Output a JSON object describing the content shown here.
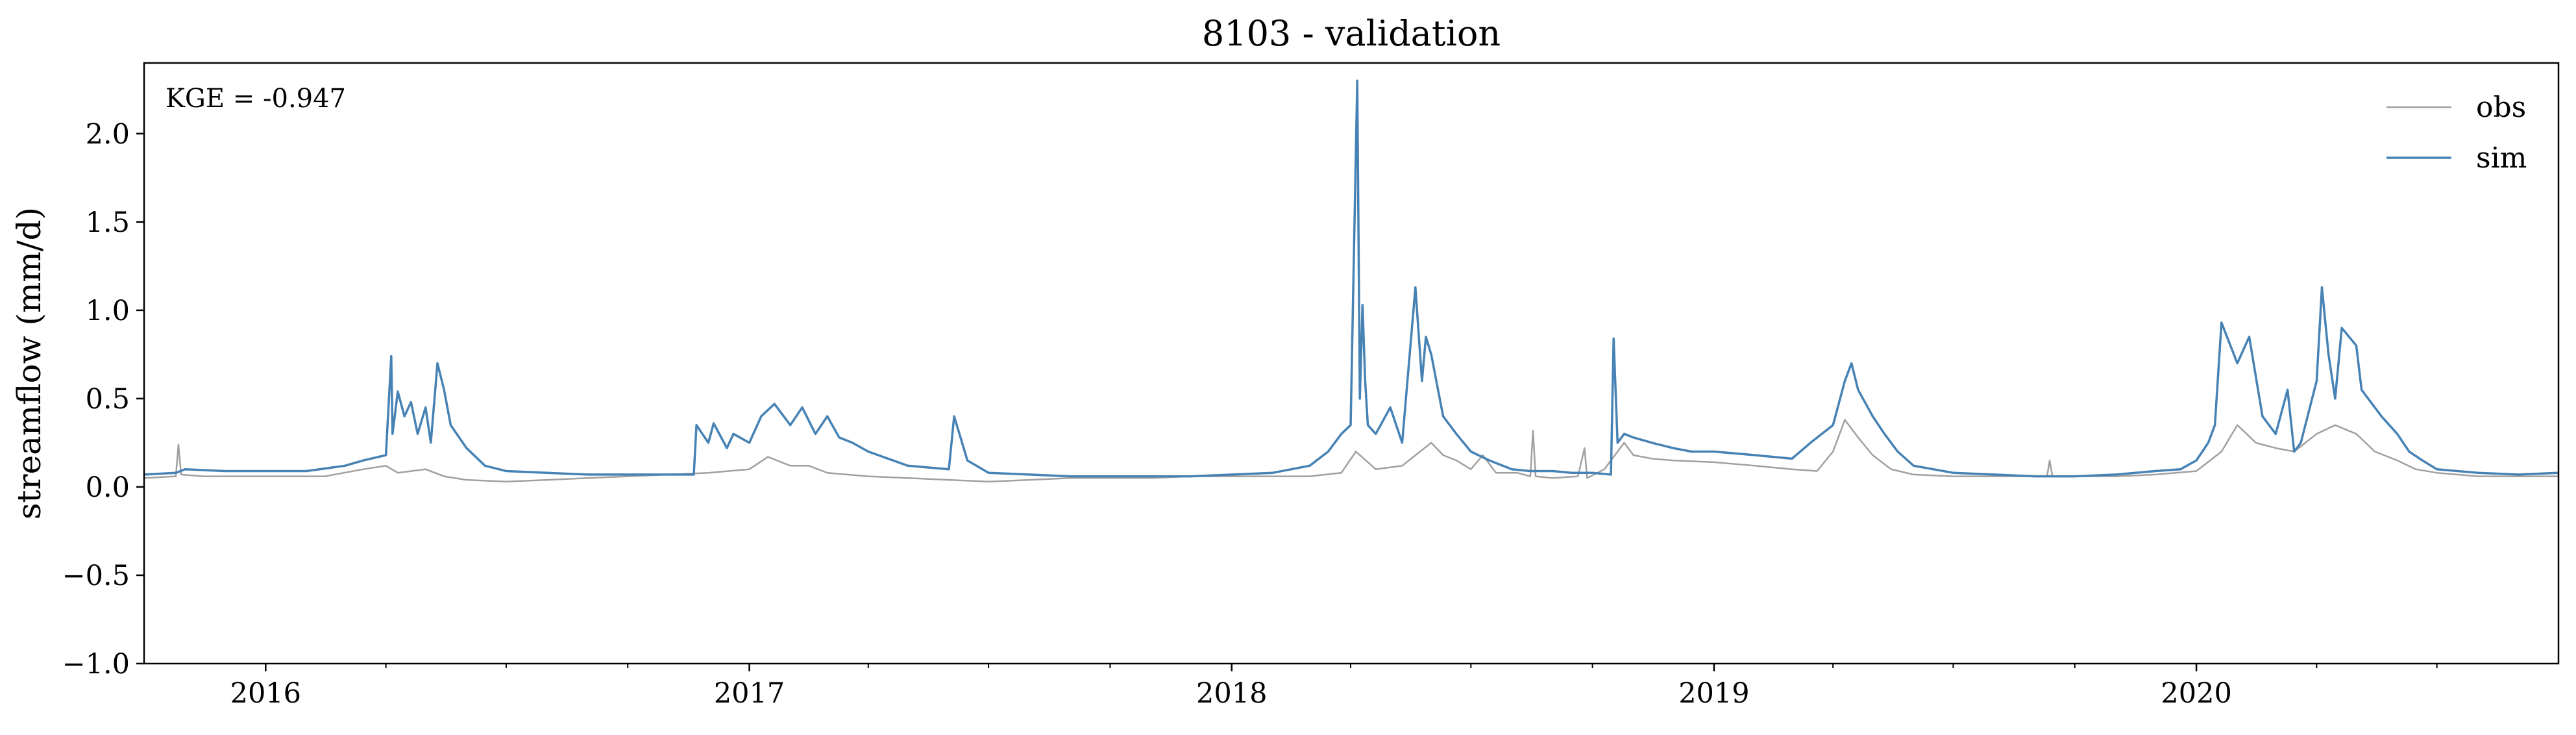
{
  "chart_data": {
    "type": "line",
    "title": "8103 - validation",
    "xlabel": "",
    "ylabel": "streamflow (mm/d)",
    "annotation": "KGE = -0.947",
    "xlim": [
      "2015-10-01",
      "2020-10-01"
    ],
    "ylim": [
      -1.0,
      2.4
    ],
    "grid": false,
    "legend_position": "top-right",
    "x_ticks": [
      "2016",
      "2017",
      "2018",
      "2019",
      "2020"
    ],
    "y_ticks": [
      "−1.0",
      "−0.5",
      "0.0",
      "0.5",
      "1.0",
      "1.5",
      "2.0"
    ],
    "series": [
      {
        "name": "obs",
        "color": "#a0a0a0",
        "x": [
          "2015-10-01",
          "2015-10-25",
          "2015-10-27",
          "2015-10-29",
          "2015-11-15",
          "2016-01-01",
          "2016-02-15",
          "2016-03-15",
          "2016-04-01",
          "2016-04-10",
          "2016-05-01",
          "2016-05-15",
          "2016-06-01",
          "2016-07-01",
          "2016-08-01",
          "2016-09-01",
          "2016-10-01",
          "2016-11-01",
          "2016-12-01",
          "2017-01-01",
          "2017-01-15",
          "2017-02-01",
          "2017-02-15",
          "2017-03-01",
          "2017-04-01",
          "2017-05-01",
          "2017-06-01",
          "2017-07-01",
          "2017-08-01",
          "2017-09-01",
          "2017-10-01",
          "2017-11-01",
          "2017-12-01",
          "2018-01-01",
          "2018-02-01",
          "2018-03-01",
          "2018-03-25",
          "2018-04-05",
          "2018-04-20",
          "2018-05-10",
          "2018-06-01",
          "2018-06-10",
          "2018-06-20",
          "2018-07-01",
          "2018-07-10",
          "2018-07-20",
          "2018-08-05",
          "2018-08-15",
          "2018-08-17",
          "2018-08-19",
          "2018-09-01",
          "2018-09-20",
          "2018-09-25",
          "2018-09-27",
          "2018-10-10",
          "2018-10-25",
          "2018-11-01",
          "2018-11-15",
          "2018-12-01",
          "2019-01-01",
          "2019-02-01",
          "2019-03-01",
          "2019-03-20",
          "2019-04-01",
          "2019-04-10",
          "2019-04-20",
          "2019-05-01",
          "2019-05-15",
          "2019-06-01",
          "2019-07-01",
          "2019-08-01",
          "2019-09-10",
          "2019-09-12",
          "2019-09-14",
          "2019-10-01",
          "2019-11-01",
          "2019-12-01",
          "2020-01-01",
          "2020-01-20",
          "2020-02-01",
          "2020-02-15",
          "2020-03-01",
          "2020-03-15",
          "2020-04-01",
          "2020-04-15",
          "2020-05-01",
          "2020-05-15",
          "2020-06-01",
          "2020-06-15",
          "2020-07-01",
          "2020-08-01",
          "2020-09-01",
          "2020-10-01"
        ],
        "values": [
          0.05,
          0.06,
          0.24,
          0.07,
          0.06,
          0.06,
          0.06,
          0.1,
          0.12,
          0.08,
          0.1,
          0.06,
          0.04,
          0.03,
          0.04,
          0.05,
          0.06,
          0.07,
          0.08,
          0.1,
          0.17,
          0.12,
          0.12,
          0.08,
          0.06,
          0.05,
          0.04,
          0.03,
          0.04,
          0.05,
          0.05,
          0.05,
          0.06,
          0.06,
          0.06,
          0.06,
          0.08,
          0.2,
          0.1,
          0.12,
          0.25,
          0.18,
          0.15,
          0.1,
          0.18,
          0.08,
          0.08,
          0.06,
          0.32,
          0.06,
          0.05,
          0.06,
          0.22,
          0.05,
          0.1,
          0.25,
          0.18,
          0.16,
          0.15,
          0.14,
          0.12,
          0.1,
          0.09,
          0.2,
          0.38,
          0.28,
          0.18,
          0.1,
          0.07,
          0.06,
          0.06,
          0.06,
          0.15,
          0.06,
          0.06,
          0.06,
          0.07,
          0.09,
          0.2,
          0.35,
          0.25,
          0.22,
          0.2,
          0.3,
          0.35,
          0.3,
          0.2,
          0.15,
          0.1,
          0.08,
          0.06,
          0.06,
          0.06
        ]
      },
      {
        "name": "sim",
        "color": "#4682b4",
        "x": [
          "2015-10-01",
          "2015-10-25",
          "2015-11-01",
          "2015-12-01",
          "2016-01-01",
          "2016-02-01",
          "2016-03-01",
          "2016-03-15",
          "2016-04-01",
          "2016-04-05",
          "2016-04-06",
          "2016-04-10",
          "2016-04-15",
          "2016-04-20",
          "2016-04-25",
          "2016-05-01",
          "2016-05-05",
          "2016-05-10",
          "2016-05-15",
          "2016-05-20",
          "2016-06-01",
          "2016-06-15",
          "2016-07-01",
          "2016-08-01",
          "2016-09-01",
          "2016-10-01",
          "2016-11-01",
          "2016-11-20",
          "2016-11-22",
          "2016-12-01",
          "2016-12-05",
          "2016-12-15",
          "2016-12-20",
          "2017-01-01",
          "2017-01-10",
          "2017-01-20",
          "2017-02-01",
          "2017-02-10",
          "2017-02-20",
          "2017-03-01",
          "2017-03-10",
          "2017-03-20",
          "2017-04-01",
          "2017-05-01",
          "2017-06-01",
          "2017-06-05",
          "2017-06-15",
          "2017-07-01",
          "2017-08-01",
          "2017-09-01",
          "2017-10-01",
          "2017-11-01",
          "2017-12-01",
          "2018-01-01",
          "2018-02-01",
          "2018-03-01",
          "2018-03-15",
          "2018-03-25",
          "2018-04-01",
          "2018-04-06",
          "2018-04-08",
          "2018-04-10",
          "2018-04-12",
          "2018-04-14",
          "2018-04-20",
          "2018-05-01",
          "2018-05-10",
          "2018-05-20",
          "2018-05-25",
          "2018-05-28",
          "2018-06-01",
          "2018-06-10",
          "2018-06-20",
          "2018-07-01",
          "2018-07-15",
          "2018-08-01",
          "2018-08-15",
          "2018-09-01",
          "2018-09-15",
          "2018-10-01",
          "2018-10-15",
          "2018-10-17",
          "2018-10-20",
          "2018-10-25",
          "2018-11-01",
          "2018-11-15",
          "2018-12-01",
          "2018-12-15",
          "2019-01-01",
          "2019-02-01",
          "2019-03-01",
          "2019-03-15",
          "2019-04-01",
          "2019-04-10",
          "2019-04-15",
          "2019-04-20",
          "2019-05-01",
          "2019-05-10",
          "2019-05-20",
          "2019-06-01",
          "2019-07-01",
          "2019-08-01",
          "2019-09-01",
          "2019-10-01",
          "2019-11-01",
          "2019-12-01",
          "2019-12-20",
          "2020-01-01",
          "2020-01-10",
          "2020-01-15",
          "2020-01-20",
          "2020-02-01",
          "2020-02-10",
          "2020-02-20",
          "2020-03-01",
          "2020-03-10",
          "2020-03-15",
          "2020-03-20",
          "2020-04-01",
          "2020-04-05",
          "2020-04-10",
          "2020-04-15",
          "2020-04-20",
          "2020-05-01",
          "2020-05-05",
          "2020-05-10",
          "2020-05-20",
          "2020-06-01",
          "2020-06-10",
          "2020-06-20",
          "2020-07-01",
          "2020-08-01",
          "2020-09-01",
          "2020-10-01"
        ],
        "values": [
          0.07,
          0.08,
          0.1,
          0.09,
          0.09,
          0.09,
          0.12,
          0.15,
          0.18,
          0.74,
          0.3,
          0.54,
          0.4,
          0.48,
          0.3,
          0.45,
          0.25,
          0.7,
          0.55,
          0.35,
          0.22,
          0.12,
          0.09,
          0.08,
          0.07,
          0.07,
          0.07,
          0.07,
          0.35,
          0.25,
          0.36,
          0.22,
          0.3,
          0.25,
          0.4,
          0.47,
          0.35,
          0.45,
          0.3,
          0.4,
          0.28,
          0.25,
          0.2,
          0.12,
          0.1,
          0.4,
          0.15,
          0.08,
          0.07,
          0.06,
          0.06,
          0.06,
          0.06,
          0.07,
          0.08,
          0.12,
          0.2,
          0.3,
          0.35,
          2.3,
          0.5,
          1.03,
          0.6,
          0.35,
          0.3,
          0.45,
          0.25,
          1.13,
          0.6,
          0.85,
          0.75,
          0.4,
          0.3,
          0.2,
          0.15,
          0.1,
          0.09,
          0.09,
          0.08,
          0.08,
          0.07,
          0.84,
          0.25,
          0.3,
          0.28,
          0.25,
          0.22,
          0.2,
          0.2,
          0.18,
          0.16,
          0.25,
          0.35,
          0.6,
          0.7,
          0.55,
          0.4,
          0.3,
          0.2,
          0.12,
          0.08,
          0.07,
          0.06,
          0.06,
          0.07,
          0.09,
          0.1,
          0.15,
          0.25,
          0.35,
          0.93,
          0.7,
          0.85,
          0.4,
          0.3,
          0.55,
          0.2,
          0.25,
          0.6,
          1.13,
          0.75,
          0.5,
          0.9,
          0.8,
          0.55,
          0.5,
          0.4,
          0.3,
          0.2,
          0.15,
          0.1,
          0.08,
          0.07,
          0.08
        ]
      }
    ]
  }
}
